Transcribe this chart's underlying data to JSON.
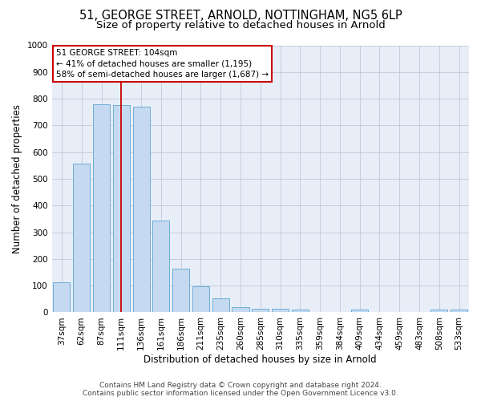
{
  "title_line1": "51, GEORGE STREET, ARNOLD, NOTTINGHAM, NG5 6LP",
  "title_line2": "Size of property relative to detached houses in Arnold",
  "xlabel": "Distribution of detached houses by size in Arnold",
  "ylabel": "Number of detached properties",
  "categories": [
    "37sqm",
    "62sqm",
    "87sqm",
    "111sqm",
    "136sqm",
    "161sqm",
    "186sqm",
    "211sqm",
    "235sqm",
    "260sqm",
    "285sqm",
    "310sqm",
    "335sqm",
    "359sqm",
    "384sqm",
    "409sqm",
    "434sqm",
    "459sqm",
    "483sqm",
    "508sqm",
    "533sqm"
  ],
  "values": [
    112,
    558,
    778,
    775,
    770,
    343,
    165,
    98,
    52,
    18,
    14,
    14,
    10,
    0,
    0,
    10,
    0,
    0,
    0,
    10,
    10
  ],
  "bar_color": "#c5d9f0",
  "bar_edge_color": "#6baed6",
  "vline_x": 3.0,
  "vline_color": "#cc0000",
  "annotation_text": "51 GEORGE STREET: 104sqm\n← 41% of detached houses are smaller (1,195)\n58% of semi-detached houses are larger (1,687) →",
  "annotation_box_color": "#ffffff",
  "annotation_box_edge_color": "#cc0000",
  "ylim": [
    0,
    1000
  ],
  "yticks": [
    0,
    100,
    200,
    300,
    400,
    500,
    600,
    700,
    800,
    900,
    1000
  ],
  "footer_line1": "Contains HM Land Registry data © Crown copyright and database right 2024.",
  "footer_line2": "Contains public sector information licensed under the Open Government Licence v3.0.",
  "bg_color": "#ffffff",
  "plot_bg_color": "#e8eef8",
  "grid_color": "#c0c8d8",
  "title_fontsize": 10.5,
  "subtitle_fontsize": 9.5,
  "axis_label_fontsize": 8.5,
  "tick_fontsize": 7.5,
  "annotation_fontsize": 7.5,
  "footer_fontsize": 6.5
}
